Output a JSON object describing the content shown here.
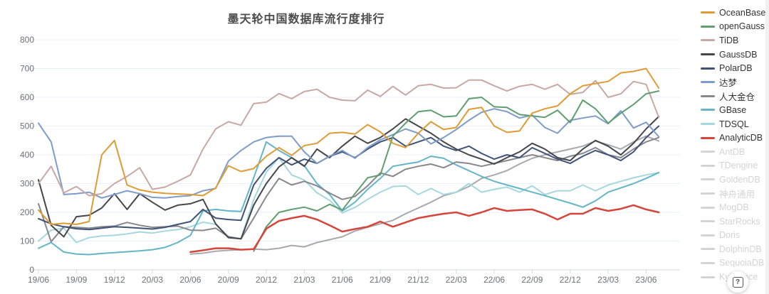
{
  "title": "墨天轮中国数据库流行度排行",
  "help_button": "?",
  "legend": {
    "items": [
      {
        "key": "oceanbase",
        "label": "OceanBase",
        "enabled": true
      },
      {
        "key": "opengauss",
        "label": "openGauss",
        "enabled": true
      },
      {
        "key": "tidb",
        "label": "TiDB",
        "enabled": true
      },
      {
        "key": "gaussdb",
        "label": "GaussDB",
        "enabled": true
      },
      {
        "key": "polardb",
        "label": "PolarDB",
        "enabled": true
      },
      {
        "key": "dameng",
        "label": "达梦",
        "enabled": true
      },
      {
        "key": "renda-jincang",
        "label": "人大金仓",
        "enabled": true
      },
      {
        "key": "gbase",
        "label": "GBase",
        "enabled": true
      },
      {
        "key": "tdsql",
        "label": "TDSQL",
        "enabled": true
      },
      {
        "key": "analyticdb",
        "label": "AnalyticDB",
        "enabled": true
      },
      {
        "key": "antdb",
        "label": "AntDB",
        "enabled": false
      },
      {
        "key": "tdengine",
        "label": "TDengine",
        "enabled": false
      },
      {
        "key": "goldendb",
        "label": "GoldenDB",
        "enabled": false
      },
      {
        "key": "shenzhou-tongyong",
        "label": "神舟通用",
        "enabled": false
      },
      {
        "key": "mogdb",
        "label": "MogDB",
        "enabled": false
      },
      {
        "key": "starrocks",
        "label": "StarRocks",
        "enabled": false
      },
      {
        "key": "doris",
        "label": "Doris",
        "enabled": false
      },
      {
        "key": "dolphindb",
        "label": "DolphinDB",
        "enabled": false
      },
      {
        "key": "sequoiadb",
        "label": "SequoiaDB",
        "enabled": false
      },
      {
        "key": "kyligence",
        "label": "Kyligence",
        "enabled": false
      }
    ],
    "disabled_color": "#d4d4d4"
  },
  "chart_data": {
    "type": "line",
    "title": "墨天轮中国数据库流行度排行",
    "ylim": [
      0,
      800
    ],
    "y_ticks": [
      0,
      100,
      200,
      300,
      400,
      500,
      600,
      700,
      800
    ],
    "grid": true,
    "legend_position": "right",
    "x_tick_every": 3,
    "x_tick_labels": [
      "19/06",
      "19/09",
      "19/12",
      "20/03",
      "20/06",
      "20/09",
      "20/12",
      "21/03",
      "21/06",
      "21/09",
      "21/12",
      "22/03",
      "22/06",
      "22/09",
      "22/12",
      "23/03",
      "23/06"
    ],
    "x": [
      "19/06",
      "19/07",
      "19/08",
      "19/09",
      "19/10",
      "19/11",
      "19/12",
      "20/01",
      "20/02",
      "20/03",
      "20/04",
      "20/05",
      "20/06",
      "20/07",
      "20/08",
      "20/09",
      "20/10",
      "20/11",
      "20/12",
      "21/01",
      "21/02",
      "21/03",
      "21/04",
      "21/05",
      "21/06",
      "21/07",
      "21/08",
      "21/09",
      "21/10",
      "21/11",
      "21/12",
      "22/01",
      "22/02",
      "22/03",
      "22/04",
      "22/05",
      "22/06",
      "22/07",
      "22/08",
      "22/09",
      "22/10",
      "22/11",
      "22/12",
      "23/01",
      "23/02",
      "23/03",
      "23/04",
      "23/05",
      "23/06",
      "23/07"
    ],
    "series": [
      {
        "key": "unlabeled-gray",
        "name": "",
        "in_legend": false,
        "color": "#a8a9ad",
        "width": 2,
        "values": [
          null,
          null,
          null,
          null,
          null,
          null,
          null,
          null,
          null,
          null,
          null,
          null,
          55,
          58,
          65,
          68,
          70,
          72,
          70,
          75,
          85,
          80,
          95,
          105,
          115,
          135,
          148,
          160,
          172,
          195,
          215,
          235,
          258,
          270,
          290,
          318,
          330,
          345,
          368,
          388,
          400,
          410,
          420,
          430,
          448,
          435,
          420,
          445,
          465,
          448
        ]
      },
      {
        "key": "tdsql",
        "name": "TDSQL",
        "in_legend": true,
        "color": "#a5d8de",
        "width": 2,
        "values": [
          100,
          138,
          145,
          95,
          112,
          118,
          120,
          125,
          132,
          128,
          135,
          140,
          150,
          166,
          158,
          116,
          108,
          245,
          340,
          390,
          330,
          312,
          268,
          242,
          198,
          217,
          245,
          270,
          290,
          292,
          262,
          283,
          262,
          270,
          300,
          270,
          280,
          288,
          270,
          292,
          262,
          275,
          275,
          295,
          275,
          295,
          308,
          320,
          330,
          338
        ]
      },
      {
        "key": "gbase",
        "name": "GBase",
        "in_legend": true,
        "color": "#64b5c8",
        "width": 2,
        "values": [
          75,
          95,
          62,
          55,
          53,
          57,
          60,
          63,
          66,
          70,
          78,
          95,
          120,
          205,
          210,
          205,
          203,
          320,
          445,
          415,
          390,
          362,
          300,
          262,
          205,
          235,
          280,
          318,
          360,
          368,
          375,
          395,
          388,
          365,
          345,
          325,
          308,
          295,
          283,
          270,
          258,
          245,
          232,
          218,
          240,
          270,
          285,
          300,
          318,
          338
        ]
      },
      {
        "key": "renda-jincang",
        "name": "人大金仓",
        "in_legend": true,
        "color": "#87878c",
        "width": 2,
        "values": [
          230,
          98,
          150,
          148,
          145,
          150,
          152,
          165,
          155,
          148,
          150,
          152,
          138,
          137,
          145,
          115,
          108,
          180,
          255,
          318,
          295,
          308,
          292,
          267,
          245,
          255,
          292,
          337,
          325,
          350,
          360,
          368,
          355,
          375,
          370,
          360,
          370,
          380,
          390,
          400,
          390,
          380,
          395,
          405,
          425,
          400,
          390,
          420,
          445,
          460
        ]
      },
      {
        "key": "polardb",
        "name": "PolarDB",
        "in_legend": true,
        "color": "#3e5377",
        "width": 2,
        "values": [
          178,
          160,
          150,
          143,
          140,
          145,
          150,
          148,
          145,
          142,
          148,
          158,
          168,
          210,
          180,
          175,
          172,
          295,
          353,
          390,
          365,
          385,
          370,
          395,
          410,
          390,
          420,
          445,
          460,
          430,
          445,
          460,
          430,
          415,
          430,
          405,
          385,
          400,
          390,
          425,
          405,
          385,
          370,
          395,
          415,
          400,
          380,
          410,
          460,
          500
        ]
      },
      {
        "key": "gaussdb",
        "name": "GaussDB",
        "in_legend": true,
        "color": "#45464b",
        "width": 2,
        "values": [
          313,
          155,
          115,
          185,
          190,
          215,
          265,
          210,
          265,
          235,
          208,
          225,
          230,
          245,
          160,
          112,
          108,
          225,
          300,
          358,
          390,
          360,
          420,
          390,
          430,
          465,
          440,
          460,
          490,
          525,
          500,
          475,
          445,
          420,
          400,
          385,
          368,
          390,
          410,
          440,
          420,
          390,
          380,
          420,
          450,
          430,
          400,
          440,
          490,
          533
        ]
      },
      {
        "key": "dameng",
        "name": "达梦",
        "in_legend": true,
        "color": "#7e9cc9",
        "width": 2,
        "values": [
          510,
          445,
          262,
          265,
          270,
          250,
          262,
          275,
          265,
          252,
          250,
          255,
          258,
          275,
          283,
          378,
          415,
          445,
          460,
          465,
          465,
          410,
          370,
          395,
          415,
          388,
          425,
          452,
          470,
          490,
          475,
          438,
          460,
          488,
          520,
          548,
          560,
          550,
          528,
          538,
          495,
          475,
          520,
          528,
          535,
          508,
          553,
          493,
          513,
          463
        ]
      },
      {
        "key": "tidb",
        "name": "TiDB",
        "in_legend": true,
        "color": "#c9a8a3",
        "width": 2,
        "values": [
          300,
          360,
          268,
          290,
          258,
          265,
          300,
          325,
          355,
          280,
          288,
          308,
          330,
          420,
          490,
          515,
          503,
          578,
          583,
          613,
          595,
          620,
          628,
          600,
          590,
          588,
          625,
          603,
          638,
          608,
          640,
          645,
          632,
          633,
          660,
          660,
          640,
          622,
          638,
          645,
          628,
          645,
          610,
          617,
          658,
          600,
          612,
          655,
          645,
          530
        ]
      },
      {
        "key": "opengauss",
        "name": "openGauss",
        "in_legend": true,
        "color": "#5e9e6f",
        "width": 2,
        "values": [
          null,
          null,
          null,
          null,
          null,
          null,
          null,
          null,
          null,
          null,
          null,
          null,
          null,
          null,
          null,
          null,
          null,
          65,
          150,
          200,
          210,
          218,
          205,
          228,
          208,
          265,
          320,
          330,
          465,
          510,
          550,
          555,
          532,
          535,
          595,
          600,
          567,
          565,
          540,
          535,
          530,
          555,
          512,
          590,
          560,
          510,
          545,
          575,
          612,
          622
        ]
      },
      {
        "key": "oceanbase",
        "name": "OceanBase",
        "in_legend": true,
        "color": "#df9b34",
        "width": 2,
        "values": [
          208,
          158,
          162,
          158,
          168,
          400,
          450,
          295,
          278,
          270,
          266,
          264,
          262,
          258,
          285,
          362,
          342,
          352,
          395,
          425,
          398,
          432,
          440,
          475,
          478,
          472,
          505,
          480,
          440,
          425,
          475,
          515,
          488,
          495,
          558,
          565,
          500,
          478,
          483,
          545,
          560,
          570,
          612,
          640,
          648,
          655,
          685,
          690,
          700,
          632
        ]
      },
      {
        "key": "analyticdb",
        "name": "AnalyticDB",
        "in_legend": true,
        "color": "#d6453c",
        "width": 2.5,
        "values": [
          null,
          null,
          null,
          null,
          null,
          null,
          null,
          null,
          null,
          null,
          null,
          null,
          62,
          68,
          75,
          75,
          70,
          72,
          143,
          170,
          180,
          188,
          175,
          155,
          133,
          142,
          150,
          168,
          150,
          165,
          180,
          188,
          195,
          200,
          188,
          200,
          215,
          205,
          208,
          210,
          195,
          175,
          195,
          195,
          215,
          205,
          212,
          225,
          210,
          200
        ]
      }
    ],
    "colors": {
      "grid": "#e9f0f8",
      "axis_line": "#d6d9de",
      "axis_label": "#6e7079",
      "title": "#4b4b4b"
    }
  }
}
